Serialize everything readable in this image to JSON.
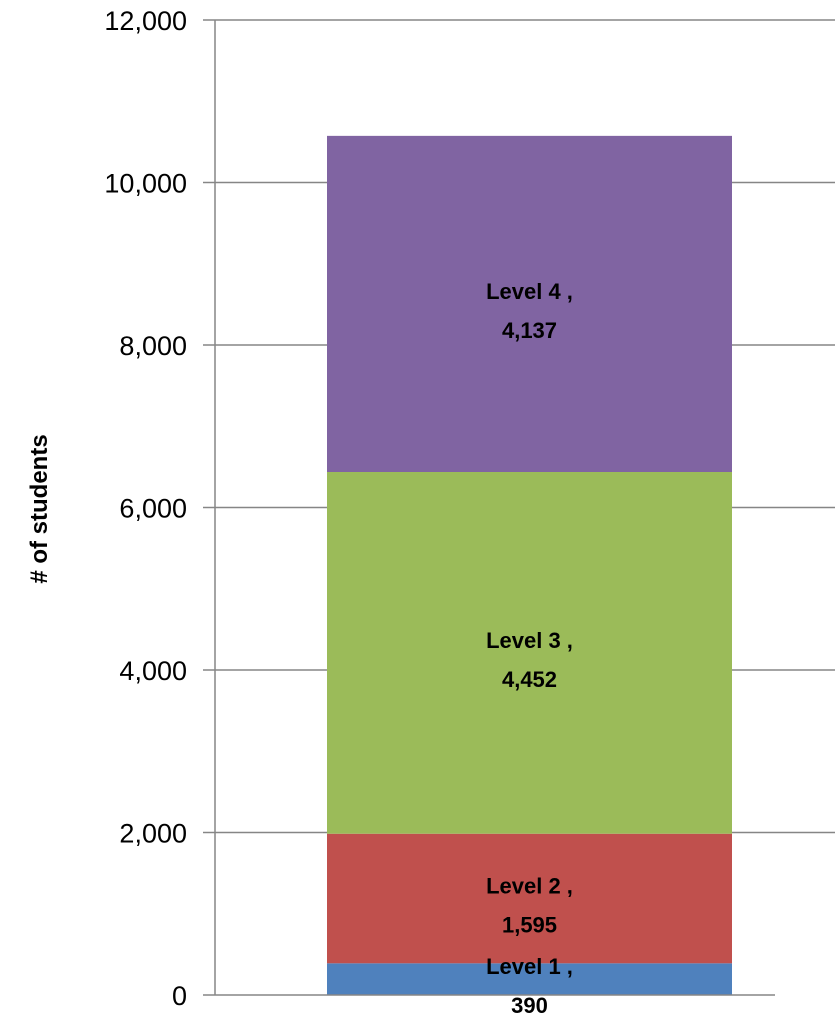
{
  "chart_data": {
    "type": "bar",
    "stacked": true,
    "categories": [
      ""
    ],
    "series": [
      {
        "name": "Level 1",
        "values": [
          390
        ],
        "color": "#4f81bd"
      },
      {
        "name": "Level 2",
        "values": [
          1595
        ],
        "color": "#c0504d"
      },
      {
        "name": "Level 3",
        "values": [
          4452
        ],
        "color": "#9bbb59"
      },
      {
        "name": "Level 4",
        "values": [
          4137
        ],
        "color": "#8064a2"
      }
    ],
    "data_labels": [
      {
        "series": "Level 1",
        "line1": "Level 1 ,",
        "line2": "390"
      },
      {
        "series": "Level 2",
        "line1": "Level 2 ,",
        "line2": "1,595"
      },
      {
        "series": "Level 3",
        "line1": "Level 3 ,",
        "line2": "4,452"
      },
      {
        "series": "Level 4",
        "line1": "Level 4 ,",
        "line2": "4,137"
      }
    ],
    "ylabel": "# of students",
    "ylim": [
      0,
      12000
    ],
    "yticks": [
      0,
      2000,
      4000,
      6000,
      8000,
      10000,
      12000
    ],
    "ytick_labels": [
      "0",
      "2,000",
      "4,000",
      "6,000",
      "8,000",
      "10,000",
      "12,000"
    ],
    "grid": true,
    "legend": "none",
    "colors": {
      "gridline": "#868686",
      "axis": "#868686"
    }
  }
}
